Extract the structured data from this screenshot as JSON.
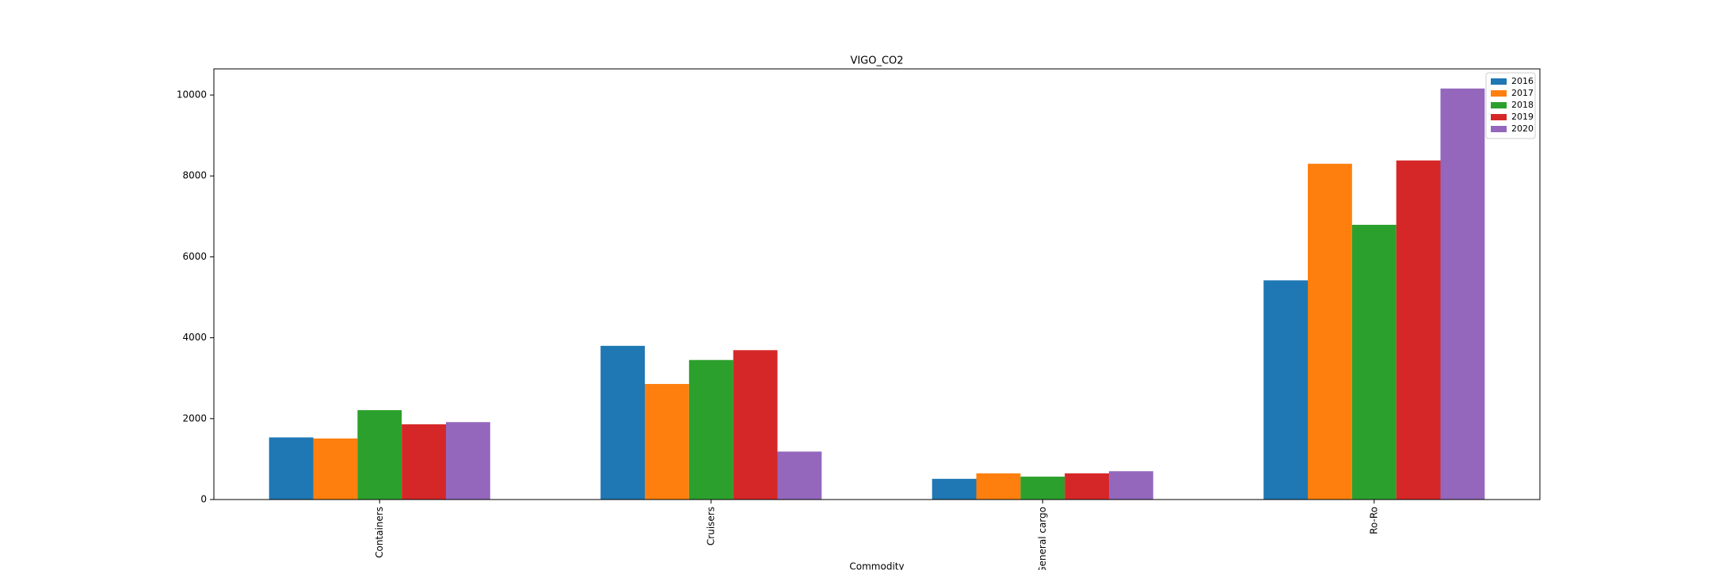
{
  "chart_data": {
    "type": "bar",
    "title": "VIGO_CO2",
    "x_label": "Commodity",
    "categories": [
      "Containers",
      "Cruisers",
      "General cargo",
      "Ro-Ro"
    ],
    "series": [
      {
        "name": "2016",
        "color": "#1f77b4",
        "values": [
          1536,
          3800,
          512,
          5418
        ]
      },
      {
        "name": "2017",
        "color": "#ff7f0e",
        "values": [
          1510,
          2857,
          647,
          8302
        ]
      },
      {
        "name": "2018",
        "color": "#2ca02c",
        "values": [
          2210,
          3450,
          566,
          6792
        ]
      },
      {
        "name": "2019",
        "color": "#d62728",
        "values": [
          1860,
          3693,
          647,
          8383
        ]
      },
      {
        "name": "2020",
        "color": "#9467bd",
        "values": [
          1914,
          1186,
          700,
          10162
        ]
      }
    ],
    "ylim": [
      0,
      10647
    ],
    "yticks": [
      0,
      2000,
      4000,
      6000,
      8000,
      10000
    ],
    "legend": "upper right"
  }
}
